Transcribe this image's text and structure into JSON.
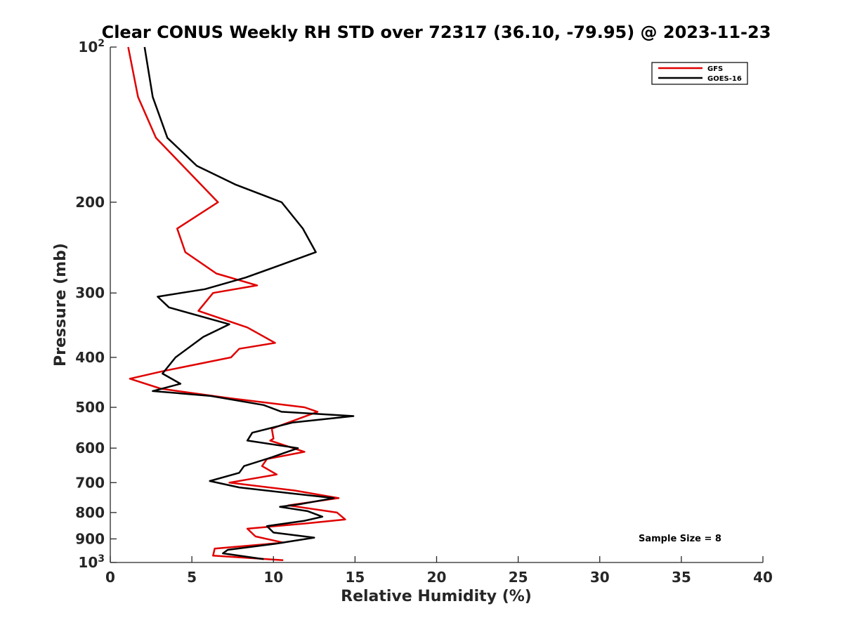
{
  "chart_data": {
    "type": "line",
    "title": "Clear CONUS Weekly RH STD over 72317 (36.10, -79.95) @ 2023-11-23",
    "xlabel": "Relative Humidity (%)",
    "ylabel": "Pressure (mb)",
    "xlim": [
      0,
      40
    ],
    "ylim": [
      100,
      1000
    ],
    "y_scale": "log",
    "y_reversed": true,
    "grid": false,
    "legend_position": "top-right",
    "x_ticks": [
      "0",
      "5",
      "10",
      "15",
      "20",
      "25",
      "30",
      "35",
      "40"
    ],
    "y_ticks": [
      {
        "value": 100,
        "base": "10",
        "exp": "2"
      },
      {
        "value": 200,
        "label": "200"
      },
      {
        "value": 300,
        "label": "300"
      },
      {
        "value": 400,
        "label": "400"
      },
      {
        "value": 500,
        "label": "500"
      },
      {
        "value": 600,
        "label": "600"
      },
      {
        "value": 700,
        "label": "700"
      },
      {
        "value": 800,
        "label": "800"
      },
      {
        "value": 900,
        "label": "900"
      },
      {
        "value": 1000,
        "base": "10",
        "exp": "3"
      }
    ],
    "annotation": "Sample Size = 8",
    "series": [
      {
        "name": "GFS",
        "color": "#e00000",
        "points": [
          [
            1.1,
            100
          ],
          [
            1.7,
            125
          ],
          [
            2.8,
            150
          ],
          [
            6.6,
            200
          ],
          [
            4.1,
            225
          ],
          [
            4.6,
            250
          ],
          [
            6.5,
            275
          ],
          [
            9.0,
            290
          ],
          [
            6.3,
            300
          ],
          [
            5.4,
            325
          ],
          [
            8.4,
            350
          ],
          [
            10.1,
            375
          ],
          [
            7.9,
            385
          ],
          [
            7.4,
            400
          ],
          [
            3.3,
            425
          ],
          [
            1.2,
            440
          ],
          [
            3.1,
            460
          ],
          [
            7.3,
            480
          ],
          [
            11.9,
            500
          ],
          [
            12.7,
            510
          ],
          [
            9.9,
            550
          ],
          [
            10.0,
            575
          ],
          [
            9.8,
            580
          ],
          [
            11.9,
            610
          ],
          [
            9.6,
            630
          ],
          [
            9.3,
            650
          ],
          [
            10.2,
            675
          ],
          [
            7.3,
            700
          ],
          [
            11.3,
            725
          ],
          [
            14.0,
            750
          ],
          [
            10.9,
            775
          ],
          [
            13.9,
            800
          ],
          [
            14.4,
            825
          ],
          [
            12.0,
            840
          ],
          [
            8.4,
            860
          ],
          [
            8.9,
            890
          ],
          [
            10.6,
            915
          ],
          [
            6.4,
            940
          ],
          [
            6.3,
            970
          ],
          [
            10.6,
            990
          ]
        ]
      },
      {
        "name": "GOES-16",
        "color": "#000000",
        "points": [
          [
            2.1,
            100
          ],
          [
            2.6,
            125
          ],
          [
            3.5,
            150
          ],
          [
            5.3,
            170
          ],
          [
            7.7,
            185
          ],
          [
            10.5,
            200
          ],
          [
            11.8,
            225
          ],
          [
            12.6,
            250
          ],
          [
            10.4,
            265
          ],
          [
            8.3,
            280
          ],
          [
            5.8,
            295
          ],
          [
            2.9,
            305
          ],
          [
            3.6,
            320
          ],
          [
            7.3,
            345
          ],
          [
            5.7,
            365
          ],
          [
            4.0,
            400
          ],
          [
            3.2,
            430
          ],
          [
            4.3,
            450
          ],
          [
            2.6,
            465
          ],
          [
            6.1,
            475
          ],
          [
            9.4,
            495
          ],
          [
            10.5,
            510
          ],
          [
            14.9,
            520
          ],
          [
            11.2,
            535
          ],
          [
            8.7,
            560
          ],
          [
            8.4,
            580
          ],
          [
            11.5,
            600
          ],
          [
            9.9,
            625
          ],
          [
            8.2,
            650
          ],
          [
            7.9,
            670
          ],
          [
            6.1,
            695
          ],
          [
            7.9,
            715
          ],
          [
            11.2,
            735
          ],
          [
            13.7,
            750
          ],
          [
            11.7,
            770
          ],
          [
            10.4,
            780
          ],
          [
            12.1,
            795
          ],
          [
            13.0,
            815
          ],
          [
            11.9,
            830
          ],
          [
            9.6,
            850
          ],
          [
            10.0,
            875
          ],
          [
            12.5,
            895
          ],
          [
            10.1,
            920
          ],
          [
            7.2,
            945
          ],
          [
            6.9,
            960
          ],
          [
            9.4,
            985
          ]
        ]
      }
    ]
  }
}
